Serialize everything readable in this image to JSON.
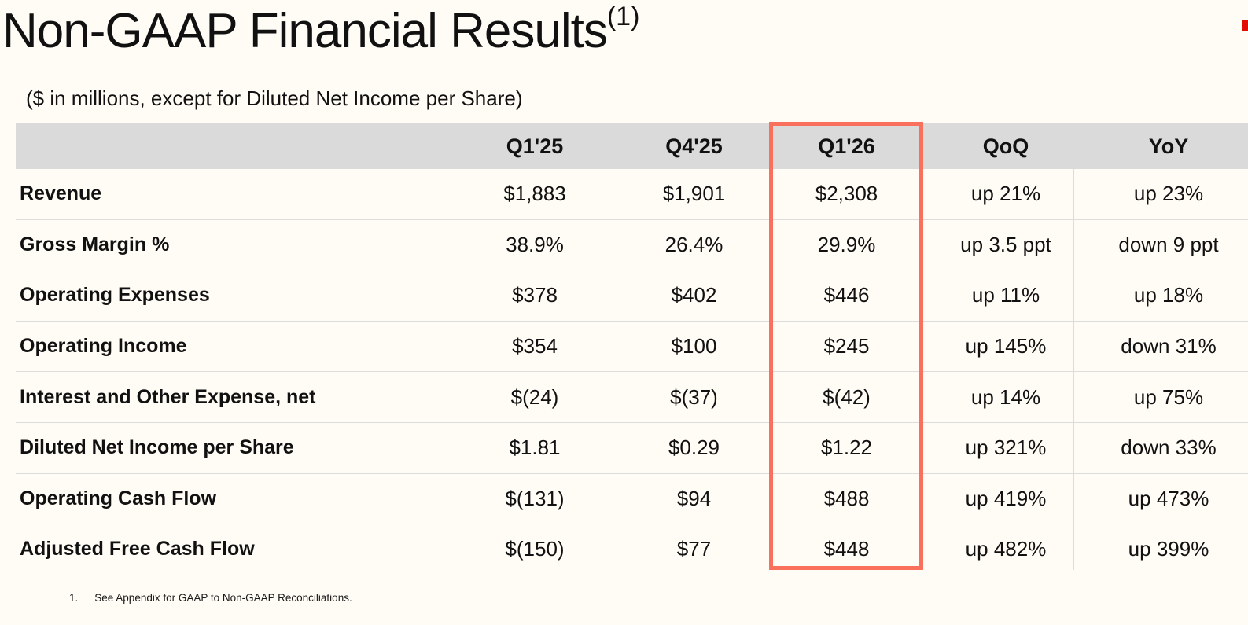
{
  "slide": {
    "title": "Non-GAAP Financial Results",
    "title_superscript": "(1)",
    "subtitle": "($ in millions, except for Diluted Net Income per Share)",
    "footnote_number": "1.",
    "footnote_text": "See Appendix for GAAP to Non-GAAP Reconciliations."
  },
  "colors": {
    "background": "#FFFBF5",
    "header_band": "#DADADA",
    "row_line": "#DCDCDA",
    "highlight_border": "#F9705D",
    "corner_accent": "#E10C00",
    "text": "#111111"
  },
  "chart_data": {
    "type": "table",
    "title": "Non-GAAP Financial Results",
    "highlighted_column": "Q1'26",
    "columns": [
      "",
      "Q1'25",
      "Q4'25",
      "Q1'26",
      "QoQ",
      "YoY"
    ],
    "rows": [
      {
        "label": "Revenue",
        "values": [
          "$1,883",
          "$1,901",
          "$2,308",
          "up 21%",
          "up 23%"
        ]
      },
      {
        "label": "Gross Margin %",
        "values": [
          "38.9%",
          "26.4%",
          "29.9%",
          "up 3.5 ppt",
          "down 9 ppt"
        ]
      },
      {
        "label": "Operating Expenses",
        "values": [
          "$378",
          "$402",
          "$446",
          "up 11%",
          "up 18%"
        ]
      },
      {
        "label": "Operating Income",
        "values": [
          "$354",
          "$100",
          "$245",
          "up 145%",
          "down 31%"
        ]
      },
      {
        "label": "Interest and Other Expense, net",
        "values": [
          "$(24)",
          "$(37)",
          "$(42)",
          "up 14%",
          "up 75%"
        ]
      },
      {
        "label": "Diluted Net Income per Share",
        "values": [
          "$1.81",
          "$0.29",
          "$1.22",
          "up 321%",
          "down 33%"
        ]
      },
      {
        "label": "Operating Cash Flow",
        "values": [
          "$(131)",
          "$94",
          "$488",
          "up 419%",
          "up 473%"
        ]
      },
      {
        "label": "Adjusted Free Cash Flow",
        "values": [
          "$(150)",
          "$77",
          "$448",
          "up 482%",
          "up 399%"
        ]
      }
    ]
  }
}
